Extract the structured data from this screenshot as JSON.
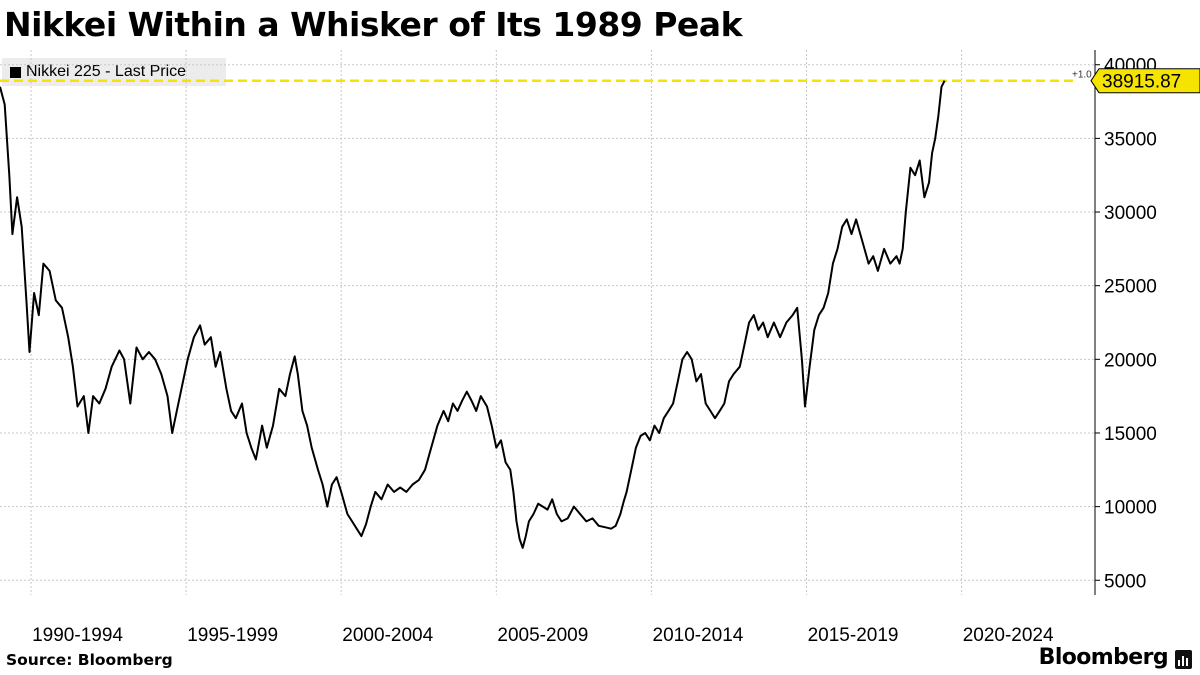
{
  "title": "Nikkei Within a Whisker of Its 1989 Peak",
  "legend": {
    "label": "Nikkei 225 - Last Price"
  },
  "source": "Source: Bloomberg",
  "brand": "Bloomberg",
  "colors": {
    "line": "#000000",
    "reference": "#f5e400",
    "grid": "#c8c8c8",
    "label_bg": "#f5e400"
  },
  "chart_data": {
    "type": "line",
    "title": "Nikkei Within a Whisker of Its 1989 Peak",
    "xlabel": "",
    "ylabel": "",
    "xlim": [
      1989.0,
      2024.3
    ],
    "ylim": [
      4000,
      41000
    ],
    "yticks": [
      5000,
      10000,
      15000,
      20000,
      25000,
      30000,
      35000,
      40000
    ],
    "xtick_labels": [
      "1990-1994",
      "1995-1999",
      "2000-2004",
      "2005-2009",
      "2010-2014",
      "2015-2019",
      "2020-2024"
    ],
    "grid": true,
    "legend_position": "top-left",
    "reference_line": {
      "value": 38915.87,
      "label": "38915.87",
      "annotation": "+1.0"
    },
    "series": [
      {
        "name": "Nikkei 225 - Last Price",
        "points": [
          [
            1989.0,
            38500
          ],
          [
            1989.15,
            37300
          ],
          [
            1989.3,
            32500
          ],
          [
            1989.4,
            28500
          ],
          [
            1989.55,
            31000
          ],
          [
            1989.7,
            29000
          ],
          [
            1989.85,
            24000
          ],
          [
            1989.95,
            20500
          ],
          [
            1990.1,
            24500
          ],
          [
            1990.25,
            23000
          ],
          [
            1990.4,
            26500
          ],
          [
            1990.6,
            26000
          ],
          [
            1990.8,
            24000
          ],
          [
            1991.0,
            23500
          ],
          [
            1991.2,
            21500
          ],
          [
            1991.35,
            19500
          ],
          [
            1991.5,
            16800
          ],
          [
            1991.7,
            17500
          ],
          [
            1991.85,
            15000
          ],
          [
            1992.0,
            17500
          ],
          [
            1992.2,
            17000
          ],
          [
            1992.4,
            18000
          ],
          [
            1992.6,
            19500
          ],
          [
            1992.85,
            20600
          ],
          [
            1993.0,
            20000
          ],
          [
            1993.2,
            17000
          ],
          [
            1993.4,
            20800
          ],
          [
            1993.6,
            20000
          ],
          [
            1993.8,
            20500
          ],
          [
            1994.0,
            20000
          ],
          [
            1994.2,
            19000
          ],
          [
            1994.4,
            17500
          ],
          [
            1994.55,
            15000
          ],
          [
            1994.7,
            16500
          ],
          [
            1994.9,
            18500
          ],
          [
            1995.05,
            20000
          ],
          [
            1995.25,
            21500
          ],
          [
            1995.45,
            22300
          ],
          [
            1995.6,
            21000
          ],
          [
            1995.8,
            21500
          ],
          [
            1995.95,
            19500
          ],
          [
            1996.1,
            20500
          ],
          [
            1996.3,
            18000
          ],
          [
            1996.45,
            16500
          ],
          [
            1996.6,
            16000
          ],
          [
            1996.8,
            17000
          ],
          [
            1996.95,
            15000
          ],
          [
            1997.1,
            14000
          ],
          [
            1997.25,
            13200
          ],
          [
            1997.45,
            15500
          ],
          [
            1997.6,
            14000
          ],
          [
            1997.8,
            15500
          ],
          [
            1998.0,
            18000
          ],
          [
            1998.2,
            17500
          ],
          [
            1998.35,
            19000
          ],
          [
            1998.5,
            20200
          ],
          [
            1998.6,
            19000
          ],
          [
            1998.75,
            16500
          ],
          [
            1998.9,
            15500
          ],
          [
            1999.05,
            14000
          ],
          [
            1999.25,
            12500
          ],
          [
            1999.4,
            11500
          ],
          [
            1999.55,
            10000
          ],
          [
            1999.7,
            11500
          ],
          [
            1999.85,
            12000
          ],
          [
            2000.0,
            11000
          ],
          [
            2000.2,
            9500
          ],
          [
            2000.35,
            9000
          ],
          [
            2000.5,
            8500
          ],
          [
            2000.65,
            8000
          ],
          [
            2000.8,
            8800
          ],
          [
            2000.95,
            10000
          ],
          [
            2001.1,
            11000
          ],
          [
            2001.3,
            10500
          ],
          [
            2001.5,
            11500
          ],
          [
            2001.7,
            11000
          ],
          [
            2001.9,
            11300
          ],
          [
            2002.1,
            11000
          ],
          [
            2002.3,
            11500
          ],
          [
            2002.5,
            11800
          ],
          [
            2002.7,
            12500
          ],
          [
            2002.9,
            14000
          ],
          [
            2003.1,
            15500
          ],
          [
            2003.3,
            16500
          ],
          [
            2003.45,
            15800
          ],
          [
            2003.6,
            17000
          ],
          [
            2003.75,
            16500
          ],
          [
            2003.9,
            17200
          ],
          [
            2004.05,
            17800
          ],
          [
            2004.2,
            17200
          ],
          [
            2004.35,
            16500
          ],
          [
            2004.5,
            17500
          ],
          [
            2004.7,
            16800
          ],
          [
            2004.85,
            15500
          ],
          [
            2005.0,
            14000
          ],
          [
            2005.15,
            14500
          ],
          [
            2005.3,
            13000
          ],
          [
            2005.45,
            12500
          ],
          [
            2005.55,
            11000
          ],
          [
            2005.65,
            9000
          ],
          [
            2005.75,
            7800
          ],
          [
            2005.85,
            7200
          ],
          [
            2005.95,
            8000
          ],
          [
            2006.05,
            9000
          ],
          [
            2006.2,
            9500
          ],
          [
            2006.35,
            10200
          ],
          [
            2006.5,
            10000
          ],
          [
            2006.65,
            9800
          ],
          [
            2006.8,
            10500
          ],
          [
            2006.95,
            9500
          ],
          [
            2007.1,
            9000
          ],
          [
            2007.3,
            9200
          ],
          [
            2007.5,
            10000
          ],
          [
            2007.7,
            9500
          ],
          [
            2007.9,
            9000
          ],
          [
            2008.1,
            9200
          ],
          [
            2008.3,
            8700
          ],
          [
            2008.5,
            8600
          ],
          [
            2008.7,
            8500
          ],
          [
            2008.85,
            8700
          ],
          [
            2009.0,
            9500
          ],
          [
            2009.1,
            10300
          ],
          [
            2009.2,
            11000
          ],
          [
            2009.35,
            12500
          ],
          [
            2009.5,
            14000
          ],
          [
            2009.65,
            14800
          ],
          [
            2009.8,
            15000
          ],
          [
            2009.95,
            14500
          ],
          [
            2010.1,
            15500
          ],
          [
            2010.25,
            15000
          ],
          [
            2010.4,
            16000
          ],
          [
            2010.55,
            16500
          ],
          [
            2010.7,
            17000
          ],
          [
            2010.85,
            18500
          ],
          [
            2011.0,
            20000
          ],
          [
            2011.15,
            20500
          ],
          [
            2011.3,
            20000
          ],
          [
            2011.45,
            18500
          ],
          [
            2011.6,
            19000
          ],
          [
            2011.75,
            17000
          ],
          [
            2011.9,
            16500
          ],
          [
            2012.05,
            16000
          ],
          [
            2012.2,
            16500
          ],
          [
            2012.35,
            17000
          ],
          [
            2012.5,
            18500
          ],
          [
            2012.65,
            19000
          ],
          [
            2012.85,
            19500
          ],
          [
            2013.0,
            21000
          ],
          [
            2013.15,
            22500
          ],
          [
            2013.3,
            23000
          ],
          [
            2013.45,
            22000
          ],
          [
            2013.6,
            22500
          ],
          [
            2013.75,
            21500
          ],
          [
            2013.95,
            22500
          ],
          [
            2014.15,
            21500
          ],
          [
            2014.35,
            22500
          ],
          [
            2014.55,
            23000
          ],
          [
            2014.7,
            23500
          ],
          [
            2014.85,
            20000
          ],
          [
            2014.95,
            16800
          ],
          [
            2015.1,
            19500
          ],
          [
            2015.25,
            22000
          ],
          [
            2015.4,
            23000
          ],
          [
            2015.55,
            23500
          ],
          [
            2015.7,
            24500
          ],
          [
            2015.85,
            26500
          ],
          [
            2016.0,
            27500
          ],
          [
            2016.15,
            29000
          ],
          [
            2016.3,
            29500
          ],
          [
            2016.45,
            28500
          ],
          [
            2016.6,
            29500
          ],
          [
            2016.8,
            28000
          ],
          [
            2017.0,
            26500
          ],
          [
            2017.15,
            27000
          ],
          [
            2017.3,
            26000
          ],
          [
            2017.5,
            27500
          ],
          [
            2017.7,
            26500
          ],
          [
            2017.9,
            27000
          ],
          [
            2018.0,
            26500
          ],
          [
            2018.1,
            27500
          ],
          [
            2018.2,
            30000
          ],
          [
            2018.35,
            33000
          ],
          [
            2018.5,
            32500
          ],
          [
            2018.65,
            33500
          ],
          [
            2018.8,
            31000
          ],
          [
            2018.95,
            32000
          ],
          [
            2019.05,
            34000
          ],
          [
            2019.15,
            35000
          ],
          [
            2019.25,
            36500
          ],
          [
            2019.35,
            38500
          ],
          [
            2019.45,
            38915.87
          ]
        ]
      }
    ]
  }
}
